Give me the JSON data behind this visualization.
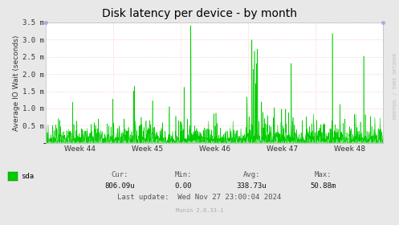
{
  "title": "Disk latency per device - by month",
  "ylabel": "Average IO Wait (seconds)",
  "right_label": "RRDTOOL / TOBI OETIKER",
  "bg_color": "#e8e8e8",
  "plot_bg_color": "#ffffff",
  "line_color": "#00cc00",
  "fill_color": "#00cc00",
  "grid_color_major": "#ffb0b0",
  "grid_color_minor": "#d0d0d0",
  "ylim_max": 0.0035,
  "ytick_vals": [
    0.0005,
    0.001,
    0.0015,
    0.002,
    0.0025,
    0.003,
    0.0035
  ],
  "ytick_labels": [
    "0.5 m",
    "1.0 m",
    "1.5 m",
    "2.0 m",
    "2.5 m",
    "3.0 m",
    "3.5 m"
  ],
  "xweek_labels": [
    "Week 44",
    "Week 45",
    "Week 46",
    "Week 47",
    "Week 48"
  ],
  "legend_label": "sda",
  "legend_color": "#00cc00",
  "cur_label": "Cur:",
  "cur_val": "806.09u",
  "min_label": "Min:",
  "min_val": "0.00",
  "avg_label": "Avg:",
  "avg_val": "338.73u",
  "max_label": "Max:",
  "max_val": "50.88m",
  "last_update": "Last update:  Wed Nov 27 23:00:04 2024",
  "munin_version": "Munin 2.0.33-1",
  "title_fontsize": 10,
  "axis_fontsize": 6.5,
  "label_fontsize": 6.5,
  "seed": 42
}
